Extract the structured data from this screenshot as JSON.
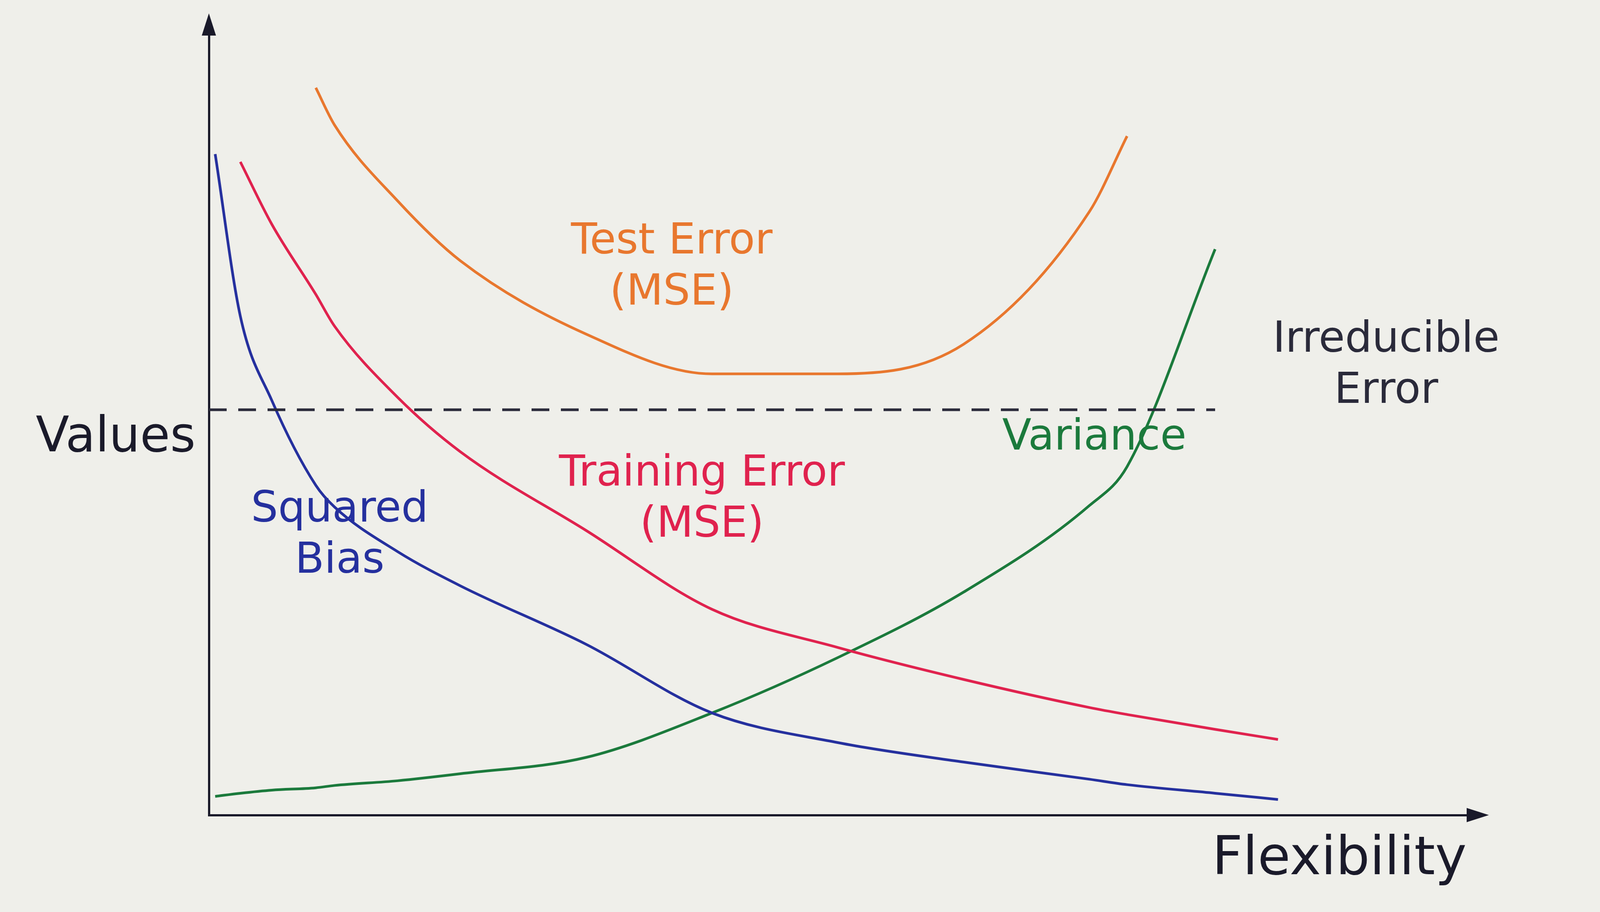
{
  "chart_data": {
    "type": "line",
    "x_label": "Flexibility",
    "y_label": "Values",
    "x": [
      0,
      0.05,
      0.25,
      0.5,
      0.85,
      1,
      1.5,
      2,
      3,
      4,
      5,
      6,
      7,
      7.3,
      8,
      8.5
    ],
    "series": [
      {
        "name": "Test Error (MSE)",
        "color": "#e8772e",
        "line_style": "solid",
        "values": [
          null,
          null,
          null,
          null,
          9.33,
          8.85,
          7.88,
          7.11,
          6.17,
          5.66,
          5.66,
          6.04,
          7.74,
          8.71,
          null,
          null
        ]
      },
      {
        "name": "Irreducible Error",
        "color": "#2a2a3a",
        "line_style": "dashed",
        "values": [
          5.2,
          5.2,
          5.2,
          5.2,
          5.2,
          5.2,
          5.2,
          5.2,
          5.2,
          5.2,
          5.2,
          5.2,
          5.2,
          5.2,
          5.2,
          null
        ]
      },
      {
        "name": "Training Error (MSE)",
        "color": "#e0224e",
        "line_style": "solid",
        "values": [
          null,
          null,
          8.38,
          7.58,
          6.68,
          6.27,
          5.36,
          4.66,
          3.65,
          2.64,
          2.15,
          1.74,
          1.38,
          1.29,
          1.1,
          0.97
        ]
      },
      {
        "name": "Squared Bias",
        "color": "#25309e",
        "line_style": "solid",
        "values": [
          null,
          8.48,
          6.4,
          5.32,
          4.23,
          3.95,
          3.38,
          2.94,
          2.19,
          1.31,
          0.93,
          0.68,
          0.46,
          0.39,
          0.28,
          0.2
        ]
      },
      {
        "name": "Variance",
        "color": "#1b7a3c",
        "line_style": "solid",
        "values": [
          null,
          0.24,
          0.28,
          0.32,
          0.35,
          0.38,
          0.44,
          0.53,
          0.74,
          1.31,
          2.02,
          2.86,
          3.97,
          4.47,
          7.26,
          null
        ]
      }
    ],
    "xlim": [
      0,
      10
    ],
    "ylim": [
      0,
      10
    ],
    "grid": false,
    "tick_labels": false
  }
}
